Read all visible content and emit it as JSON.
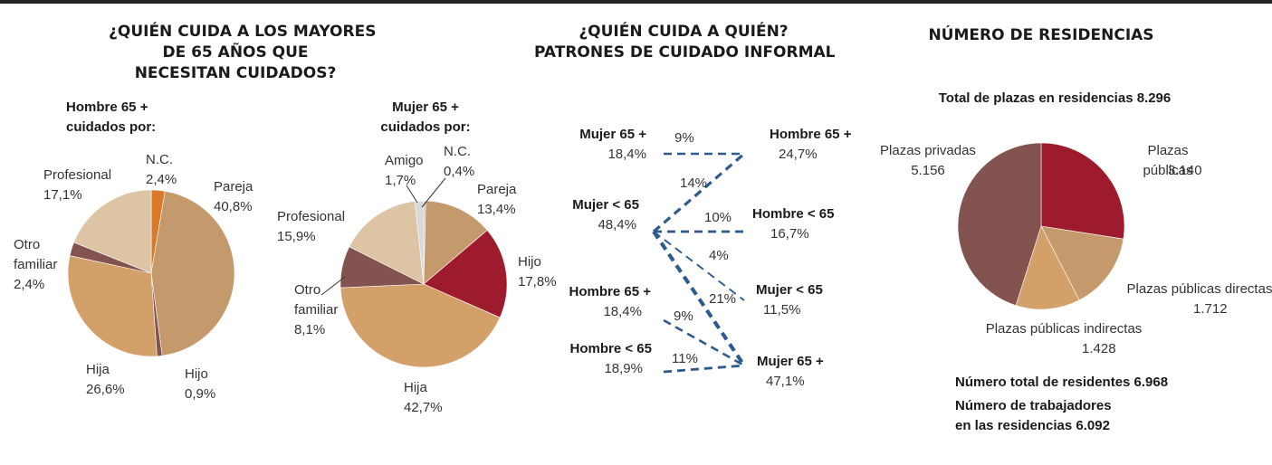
{
  "panel1": {
    "title_lines": [
      "¿QUIÉN CUIDA A LOS MAYORES",
      "DE 65 AÑOS QUE",
      "NECESITAN CUIDADOS?"
    ]
  },
  "panel2": {
    "title_lines": [
      "¿QUIÉN CUIDA A QUIÉN?",
      "PATRONES DE CUIDADO INFORMAL"
    ]
  },
  "panel3": {
    "title": "NÚMERO DE RESIDENCIAS",
    "total_plazas": "Total de plazas en residencias 8.296",
    "residentes": "Número total de residentes 6.968",
    "trabajadores_lines": [
      "Número de trabajadores",
      "en las residencias 6.092"
    ]
  },
  "colors": {
    "pareja": "#c49a6c",
    "hijo": "#9e1b2e",
    "hija": "#d4a06a",
    "otro_familiar": "#835350",
    "profesional": "#ddc4a4",
    "amigo": "#d9d9d9",
    "nc_hombre": "#d97a2b",
    "nc_mujer": "#bbbbbb",
    "flow": "#2e5a8f"
  },
  "chart_data": [
    {
      "type": "pie",
      "subtitle_lines": [
        "Hombre 65 +",
        "cuidados por:"
      ],
      "slices": [
        {
          "label": "N.C.",
          "value": 2.4,
          "value_label": "2,4%",
          "color": "#d97a2b"
        },
        {
          "label": "Pareja",
          "value": 40.8,
          "value_label": "40,8%",
          "color": "#c49a6c"
        },
        {
          "label": "Hijo",
          "value": 0.9,
          "value_label": "0,9%",
          "color": "#835350"
        },
        {
          "label": "Hija",
          "value": 26.6,
          "value_label": "26,6%",
          "color": "#d4a06a"
        },
        {
          "label": "Otro familiar",
          "value": 2.4,
          "value_label": "2,4%",
          "color": "#835350"
        },
        {
          "label": "Profesional",
          "value": 17.1,
          "value_label": "17,1%",
          "color": "#ddc4a4"
        }
      ]
    },
    {
      "type": "pie",
      "subtitle_lines": [
        "Mujer 65 +",
        "cuidados por:"
      ],
      "slices": [
        {
          "label": "N.C.",
          "value": 0.4,
          "value_label": "0,4%",
          "color": "#bbbbbb"
        },
        {
          "label": "Pareja",
          "value": 13.4,
          "value_label": "13,4%",
          "color": "#c49a6c"
        },
        {
          "label": "Hijo",
          "value": 17.8,
          "value_label": "17,8%",
          "color": "#9e1b2e"
        },
        {
          "label": "Hija",
          "value": 42.7,
          "value_label": "42,7%",
          "color": "#d4a06a"
        },
        {
          "label": "Otro familiar",
          "value": 8.1,
          "value_label": "8,1%",
          "color": "#835350"
        },
        {
          "label": "Profesional",
          "value": 15.9,
          "value_label": "15,9%",
          "color": "#ddc4a4"
        },
        {
          "label": "Amigo",
          "value": 1.7,
          "value_label": "1,7%",
          "color": "#d9d9d9"
        }
      ]
    },
    {
      "type": "flow",
      "left_nodes": [
        {
          "label": "Mujer 65 +",
          "value_label": "18,4%"
        },
        {
          "label": "Mujer < 65",
          "value_label": "48,4%"
        },
        {
          "label": "Hombre 65 +",
          "value_label": "18,4%"
        },
        {
          "label": "Hombre < 65",
          "value_label": "18,9%"
        }
      ],
      "right_nodes": [
        {
          "label": "Hombre 65 +",
          "value_label": "24,7%"
        },
        {
          "label": "Hombre < 65",
          "value_label": "16,7%"
        },
        {
          "label": "Mujer < 65",
          "value_label": "11,5%"
        },
        {
          "label": "Mujer 65 +",
          "value_label": "47,1%"
        }
      ],
      "links": [
        {
          "from": 0,
          "to": 0,
          "value": 9,
          "value_label": "9%"
        },
        {
          "from": 1,
          "to": 0,
          "value": 14,
          "value_label": "14%"
        },
        {
          "from": 1,
          "to": 1,
          "value": 10,
          "value_label": "10%"
        },
        {
          "from": 1,
          "to": 2,
          "value": 4,
          "value_label": "4%"
        },
        {
          "from": 1,
          "to": 3,
          "value": 21,
          "value_label": "21%"
        },
        {
          "from": 2,
          "to": 3,
          "value": 9,
          "value_label": "9%"
        },
        {
          "from": 3,
          "to": 3,
          "value": 11,
          "value_label": "11%"
        }
      ]
    },
    {
      "type": "pie",
      "slices": [
        {
          "label": "Plazas públicas",
          "value": 3140,
          "value_label": "3.140",
          "color": "#9e1b2e"
        },
        {
          "label": "Plazas públicas directas",
          "value": 1712,
          "value_label": "1.712",
          "color": "#c49a6c"
        },
        {
          "label": "Plazas públicas indirectas",
          "value": 1428,
          "value_label": "1.428",
          "color": "#d4a06a"
        },
        {
          "label": "Plazas privadas",
          "value": 5156,
          "value_label": "5.156",
          "color": "#835350"
        }
      ],
      "display_slices": [
        {
          "label": "Plazas públicas",
          "value": 3140,
          "color": "#9e1b2e"
        },
        {
          "label": "Plazas públicas directas",
          "value": 1712,
          "color": "#c49a6c"
        },
        {
          "label": "Plazas públicas indirectas",
          "value": 1428,
          "color": "#d4a06a"
        },
        {
          "label": "Plazas privadas",
          "value": 5156,
          "color": "#835350"
        }
      ]
    }
  ]
}
